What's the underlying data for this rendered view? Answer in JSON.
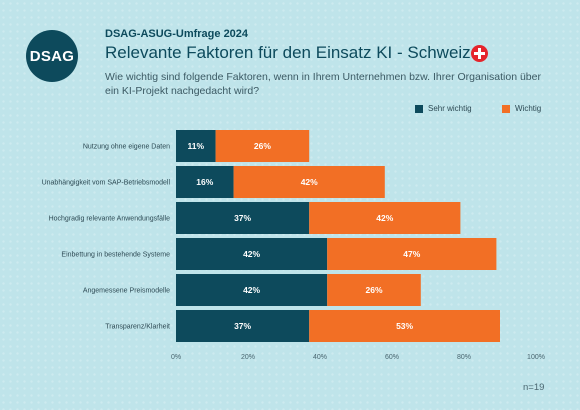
{
  "header": {
    "logo_text": "DSAG",
    "survey": "DSAG-ASUG-Umfrage 2024",
    "title": "Relevante Faktoren für den Einsatz KI - Schweiz",
    "subtitle": "Wie wichtig sind folgende Faktoren, wenn in Ihrem Unternehmen bzw. Ihrer Organisation über ein KI-Projekt nachgedacht wird?",
    "flag_icon": "swiss-flag-icon"
  },
  "colors": {
    "background": "#bfe4ea",
    "sehr_wichtig": "#0d4a5c",
    "wichtig": "#f26f25"
  },
  "footer": {
    "n": "n=19"
  },
  "chart_data": {
    "type": "bar",
    "orientation": "horizontal",
    "stacked": true,
    "categories": [
      "Nutzung ohne eigene Daten",
      "Unabhängigkeit vom SAP-Betriebsmodell",
      "Hochgradig relevante Anwendungsfälle",
      "Einbettung in bestehende Systeme",
      "Angemessene Preismodelle",
      "Transparenz/Klarheit"
    ],
    "series": [
      {
        "name": "Sehr wichtig",
        "values": [
          11,
          16,
          37,
          42,
          42,
          37
        ]
      },
      {
        "name": "Wichtig",
        "values": [
          26,
          42,
          42,
          47,
          26,
          53
        ]
      }
    ],
    "value_suffix": "%",
    "xlim": [
      0,
      100
    ],
    "xticks": [
      "0%",
      "20%",
      "40%",
      "60%",
      "80%",
      "100%"
    ],
    "legend_position": "top-right",
    "grid": false
  }
}
